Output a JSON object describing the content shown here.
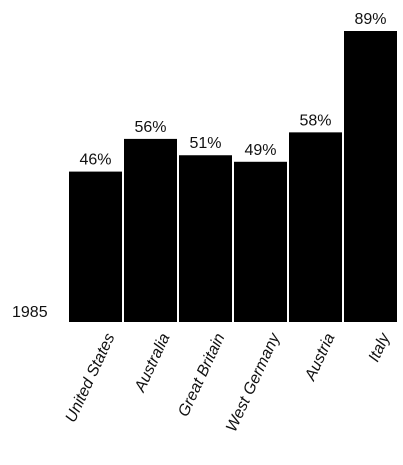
{
  "chart_data": {
    "type": "bar",
    "categories": [
      "United States",
      "Australia",
      "Great Britain",
      "West Germany",
      "Austria",
      "Italy"
    ],
    "values": [
      46,
      56,
      51,
      49,
      58,
      89
    ],
    "value_labels": [
      "46%",
      "56%",
      "51%",
      "49%",
      "58%",
      "89%"
    ],
    "year_label": "1985",
    "bar_color": "#000000",
    "ylim": [
      0,
      89
    ]
  }
}
